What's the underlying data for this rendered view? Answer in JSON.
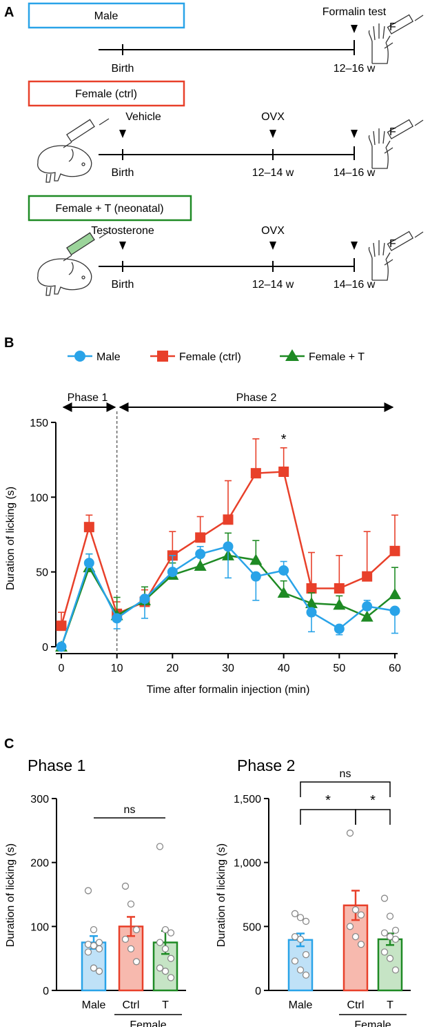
{
  "panel_a": {
    "label": "A",
    "groups": [
      {
        "name": "Male",
        "color": "#29a3e8",
        "events": [
          {
            "above": "",
            "below": "Birth"
          },
          {
            "above": "Formalin test",
            "below": "12–16 w",
            "arrow": true
          }
        ],
        "paw_label": "F"
      },
      {
        "name": "Female (ctrl)",
        "color": "#e8402a",
        "events": [
          {
            "above": "Vehicle",
            "below": "Birth",
            "arrow": true
          },
          {
            "above": "OVX",
            "below": "12–14 w",
            "arrow": true
          },
          {
            "above": "",
            "below": "14–16 w",
            "arrow": true
          }
        ],
        "paw_label": "F"
      },
      {
        "name": "Female + T (neonatal)",
        "color": "#1e8a24",
        "events": [
          {
            "above": "Testosterone",
            "below": "Birth",
            "arrow": true
          },
          {
            "above": "OVX",
            "below": "12–14 w",
            "arrow": true
          },
          {
            "above": "",
            "below": "14–16 w",
            "arrow": true
          }
        ],
        "paw_label": "F"
      }
    ]
  },
  "panel_b_label": "B",
  "panel_c_label": "C",
  "chart_data": [
    {
      "type": "line",
      "title": "",
      "xlabel": "Time after formalin injection (min)",
      "ylabel": "Duration of licking (s)",
      "xlim": [
        0,
        60
      ],
      "ylim": [
        0,
        150
      ],
      "xticks": [
        0,
        10,
        20,
        30,
        40,
        50,
        60
      ],
      "yticks": [
        0,
        50,
        100,
        150
      ],
      "x": [
        0,
        5,
        10,
        15,
        20,
        25,
        30,
        35,
        40,
        45,
        50,
        55,
        60
      ],
      "series": [
        {
          "name": "Male",
          "color": "#29a3e8",
          "marker": "circle",
          "values": [
            0,
            56,
            19,
            32,
            50,
            62,
            67,
            47,
            51,
            23,
            12,
            27,
            24
          ],
          "errors": [
            0,
            6,
            7,
            13,
            11,
            5,
            21,
            16,
            6,
            13,
            4,
            4,
            15
          ]
        },
        {
          "name": "Female (ctrl)",
          "color": "#e8402a",
          "marker": "square",
          "values": [
            14,
            80,
            22,
            30,
            61,
            73,
            85,
            116,
            117,
            39,
            39,
            47,
            64
          ],
          "errors": [
            9,
            8,
            8,
            8,
            16,
            14,
            26,
            23,
            16,
            24,
            22,
            30,
            24
          ]
        },
        {
          "name": "Female + T",
          "color": "#1e8a24",
          "marker": "triangle",
          "values": [
            0,
            53,
            21,
            31,
            48,
            54,
            61,
            58,
            36,
            29,
            28,
            20,
            35
          ],
          "errors": [
            0,
            9,
            12,
            9,
            8,
            8,
            15,
            13,
            8,
            7,
            6,
            6,
            18
          ]
        }
      ],
      "annotations": {
        "phase1": "Phase 1",
        "phase2": "Phase 2",
        "phase_boundary_x": 10,
        "sig_star": "*",
        "sig_x": 40
      },
      "legend": "top"
    },
    {
      "type": "bar",
      "title": "Phase 1",
      "ylabel": "Duration of licking (s)",
      "ylim": [
        0,
        300
      ],
      "yticks": [
        0,
        100,
        200,
        300
      ],
      "categories": [
        "Male",
        "Ctrl",
        "T"
      ],
      "group_label": "Female",
      "values": [
        75,
        100,
        75
      ],
      "errors": [
        10,
        15,
        18
      ],
      "colors": [
        "#29a3e8",
        "#e8402a",
        "#1e8a24"
      ],
      "fills": [
        "#bfe1f7",
        "#f7b9ae",
        "#c6e4c5"
      ],
      "points": [
        [
          156,
          95,
          75,
          72,
          70,
          65,
          60,
          35,
          30
        ],
        [
          163,
          135,
          95,
          80,
          65,
          45
        ],
        [
          225,
          95,
          90,
          75,
          65,
          50,
          35,
          30,
          20
        ]
      ],
      "significance": [
        {
          "from": 0,
          "to": 2,
          "label": "ns"
        }
      ]
    },
    {
      "type": "bar",
      "title": "Phase 2",
      "ylabel": "Duration of licking (s)",
      "ylim": [
        0,
        1500
      ],
      "yticks": [
        0,
        500,
        1000,
        1500
      ],
      "ytick_labels": [
        "0",
        "500",
        "1,000",
        "1,500"
      ],
      "categories": [
        "Male",
        "Ctrl",
        "T"
      ],
      "group_label": "Female",
      "values": [
        395,
        665,
        400
      ],
      "errors": [
        50,
        115,
        45
      ],
      "colors": [
        "#29a3e8",
        "#e8402a",
        "#1e8a24"
      ],
      "fills": [
        "#bfe1f7",
        "#f7b9ae",
        "#c6e4c5"
      ],
      "points": [
        [
          600,
          570,
          540,
          420,
          400,
          280,
          230,
          160,
          120
        ],
        [
          1230,
          630,
          590,
          500,
          420,
          360
        ],
        [
          720,
          580,
          470,
          450,
          420,
          400,
          300,
          250,
          160
        ]
      ],
      "significance": [
        {
          "from": 0,
          "to": 2,
          "label": "ns"
        },
        {
          "from": 0,
          "to": 1,
          "label": "*"
        },
        {
          "from": 1,
          "to": 2,
          "label": "*"
        }
      ]
    }
  ]
}
